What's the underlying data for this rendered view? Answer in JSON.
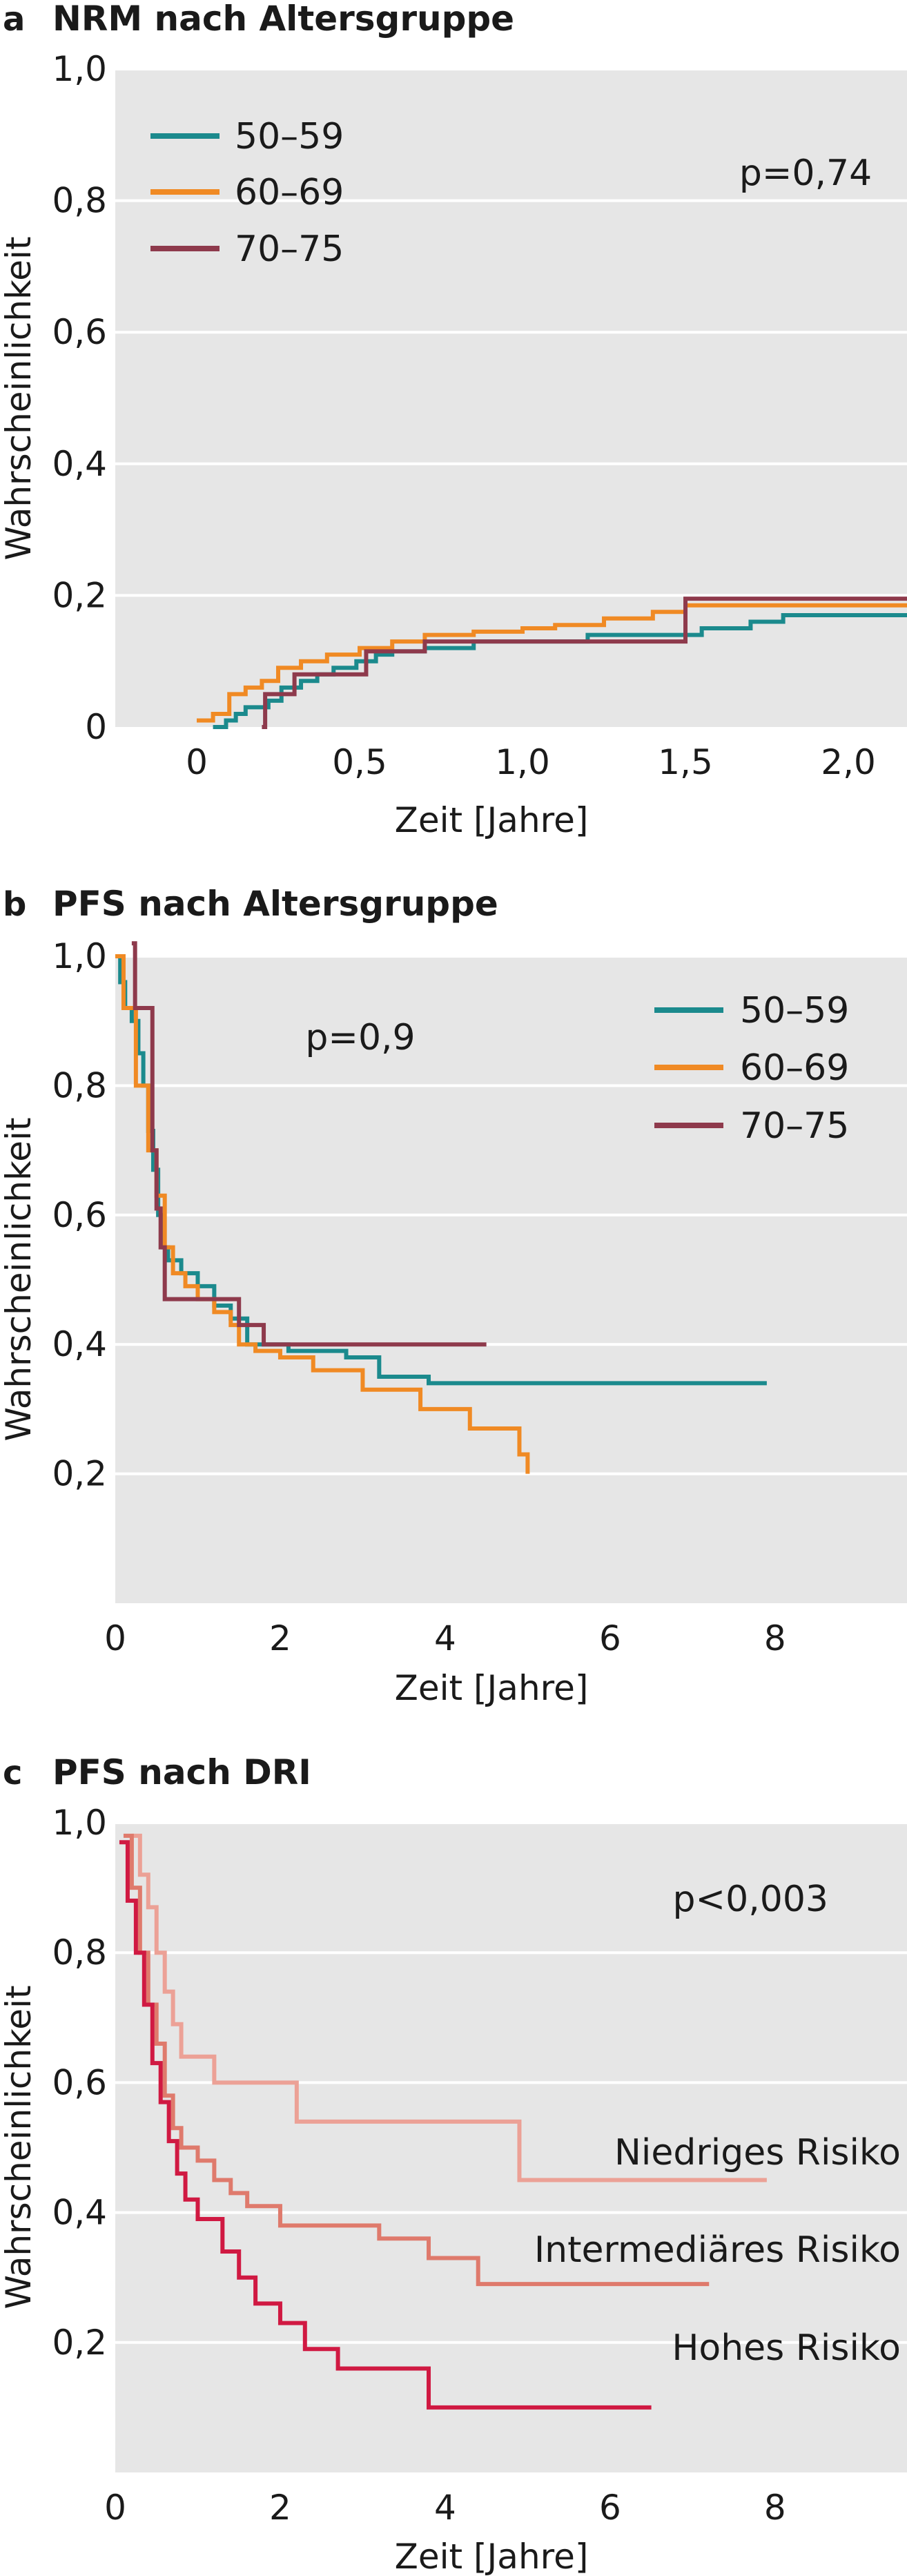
{
  "chart_data": [
    {
      "type": "line",
      "panel_letter": "a",
      "title": "NRM nach Altersgruppe",
      "xlabel": "Zeit [Jahre]",
      "ylabel": "Wahrscheinlichkeit",
      "xlim": [
        -0.25,
        2.18
      ],
      "ylim": [
        0,
        1.0
      ],
      "xticks": [
        0,
        0.5,
        1.0,
        1.5,
        2.0
      ],
      "xtick_labels": [
        "0",
        "0,5",
        "1,0",
        "1,5",
        "2,0"
      ],
      "yticks": [
        0,
        0.2,
        0.4,
        0.6,
        0.8,
        1.0
      ],
      "ytick_labels": [
        "0",
        "0,2",
        "0,4",
        "0,6",
        "0,8",
        "1,0"
      ],
      "grid": true,
      "legend_position": "top-left",
      "annotation": "p=0,74",
      "step": "post",
      "series": [
        {
          "name": "50–59",
          "color": "#1b8a8d",
          "x": [
            0.05,
            0.09,
            0.12,
            0.15,
            0.19,
            0.22,
            0.26,
            0.32,
            0.37,
            0.42,
            0.49,
            0.55,
            0.6,
            0.7,
            0.85,
            1.0,
            1.2,
            1.4,
            1.55,
            1.7,
            1.8,
            2.18
          ],
          "y": [
            0.0,
            0.01,
            0.02,
            0.03,
            0.03,
            0.04,
            0.06,
            0.07,
            0.08,
            0.09,
            0.1,
            0.11,
            0.115,
            0.12,
            0.13,
            0.13,
            0.14,
            0.14,
            0.15,
            0.16,
            0.17,
            0.17
          ]
        },
        {
          "name": "60–69",
          "color": "#f08a24",
          "x": [
            0.0,
            0.05,
            0.1,
            0.15,
            0.2,
            0.25,
            0.32,
            0.4,
            0.5,
            0.6,
            0.7,
            0.85,
            1.0,
            1.1,
            1.25,
            1.4,
            1.5,
            2.18
          ],
          "y": [
            0.01,
            0.02,
            0.05,
            0.06,
            0.07,
            0.09,
            0.1,
            0.11,
            0.12,
            0.13,
            0.14,
            0.145,
            0.15,
            0.155,
            0.165,
            0.175,
            0.185,
            0.185
          ]
        },
        {
          "name": "70–75",
          "color": "#8e3a4c",
          "x": [
            0.2,
            0.21,
            0.3,
            0.5,
            0.52,
            0.7,
            1.0,
            1.49,
            1.5,
            2.18
          ],
          "y": [
            0.0,
            0.05,
            0.08,
            0.08,
            0.115,
            0.13,
            0.13,
            0.13,
            0.195,
            0.195
          ]
        }
      ]
    },
    {
      "type": "line",
      "panel_letter": "b",
      "title": "PFS nach Altersgruppe",
      "xlabel": "Zeit [Jahre]",
      "ylabel": "Wahrscheinlichkeit",
      "xlim": [
        0,
        9.6
      ],
      "ylim": [
        0.0,
        1.0
      ],
      "xticks": [
        0,
        2,
        4,
        6,
        8
      ],
      "xtick_labels": [
        "0",
        "2",
        "4",
        "6",
        "8"
      ],
      "yticks": [
        0.2,
        0.4,
        0.6,
        0.8,
        1.0
      ],
      "ytick_labels": [
        "0,2",
        "0,4",
        "0,6",
        "0,8",
        "1,0"
      ],
      "grid": true,
      "legend_position": "top-right",
      "annotation": "p=0,9",
      "step": "post",
      "series": [
        {
          "name": "50–59",
          "color": "#1b8a8d",
          "x": [
            0.0,
            0.06,
            0.12,
            0.2,
            0.28,
            0.34,
            0.4,
            0.46,
            0.52,
            0.58,
            0.64,
            0.8,
            1.0,
            1.2,
            1.4,
            1.6,
            2.1,
            2.8,
            3.2,
            3.8,
            7.9
          ],
          "y": [
            1.0,
            0.96,
            0.92,
            0.9,
            0.85,
            0.8,
            0.73,
            0.67,
            0.6,
            0.55,
            0.53,
            0.51,
            0.49,
            0.46,
            0.44,
            0.4,
            0.39,
            0.38,
            0.35,
            0.34,
            0.34
          ]
        },
        {
          "name": "60–69",
          "color": "#f08a24",
          "x": [
            0.0,
            0.1,
            0.25,
            0.4,
            0.5,
            0.6,
            0.7,
            0.85,
            1.0,
            1.2,
            1.4,
            1.5,
            1.7,
            2.0,
            2.4,
            3.0,
            3.7,
            4.3,
            4.9,
            5.0
          ],
          "y": [
            1.0,
            0.92,
            0.8,
            0.7,
            0.63,
            0.55,
            0.51,
            0.49,
            0.47,
            0.45,
            0.43,
            0.4,
            0.39,
            0.38,
            0.36,
            0.33,
            0.3,
            0.27,
            0.23,
            0.2
          ]
        },
        {
          "name": "70–75",
          "color": "#8e3a4c",
          "x": [
            0.2,
            0.24,
            0.45,
            0.5,
            0.55,
            0.6,
            1.0,
            1.5,
            1.8,
            4.5
          ],
          "y": [
            1.02,
            0.92,
            0.7,
            0.61,
            0.55,
            0.47,
            0.47,
            0.43,
            0.4,
            0.4
          ]
        }
      ]
    },
    {
      "type": "line",
      "panel_letter": "c",
      "title": "PFS nach DRI",
      "xlabel": "Zeit [Jahre]",
      "ylabel": "Wahrscheinlichkeit",
      "xlim": [
        0,
        9.6
      ],
      "ylim": [
        0.0,
        1.0
      ],
      "xticks": [
        0,
        2,
        4,
        6,
        8
      ],
      "xtick_labels": [
        "0",
        "2",
        "4",
        "6",
        "8"
      ],
      "yticks": [
        0.2,
        0.4,
        0.6,
        0.8,
        1.0
      ],
      "ytick_labels": [
        "0,2",
        "0,4",
        "0,6",
        "0,8",
        "1,0"
      ],
      "grid": true,
      "legend_position": "none",
      "annotation": "p<0,003",
      "step": "post",
      "series": [
        {
          "name": "Niedriges Risiko",
          "color": "#eca196",
          "x": [
            0.2,
            0.3,
            0.4,
            0.5,
            0.6,
            0.7,
            0.8,
            1.0,
            1.2,
            1.5,
            2.2,
            3.0,
            4.9,
            7.9
          ],
          "y": [
            0.98,
            0.92,
            0.87,
            0.8,
            0.74,
            0.69,
            0.64,
            0.64,
            0.6,
            0.6,
            0.54,
            0.54,
            0.45,
            0.45
          ]
        },
        {
          "name": "Intermediäres Risiko",
          "color": "#df7a6c",
          "x": [
            0.1,
            0.2,
            0.3,
            0.4,
            0.5,
            0.6,
            0.7,
            0.8,
            1.0,
            1.2,
            1.4,
            1.6,
            2.0,
            2.5,
            3.2,
            3.8,
            4.4,
            7.2
          ],
          "y": [
            0.98,
            0.9,
            0.8,
            0.72,
            0.66,
            0.58,
            0.53,
            0.5,
            0.48,
            0.45,
            0.43,
            0.41,
            0.38,
            0.38,
            0.36,
            0.33,
            0.29,
            0.29
          ]
        },
        {
          "name": "Hohes Risiko",
          "color": "#d01942",
          "x": [
            0.05,
            0.15,
            0.25,
            0.35,
            0.45,
            0.55,
            0.65,
            0.75,
            0.85,
            1.0,
            1.3,
            1.5,
            1.7,
            2.0,
            2.3,
            2.7,
            3.8,
            6.5
          ],
          "y": [
            0.97,
            0.88,
            0.8,
            0.72,
            0.63,
            0.57,
            0.51,
            0.46,
            0.42,
            0.39,
            0.34,
            0.3,
            0.26,
            0.23,
            0.19,
            0.16,
            0.1,
            0.1
          ]
        }
      ]
    }
  ]
}
